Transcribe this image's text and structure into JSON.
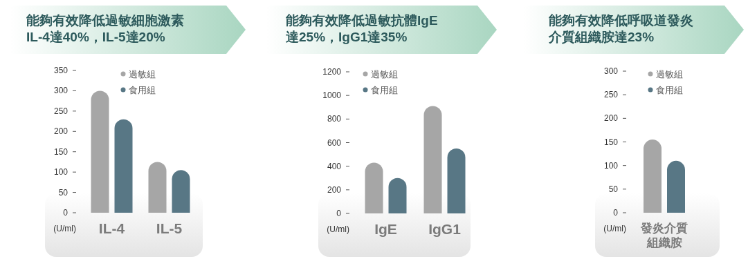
{
  "chart_data": [
    {
      "type": "bar",
      "title": "能夠有效降低過敏細胞激素IL-4達40%，IL-5達20%",
      "annotations": [
        "(U/ml)"
      ],
      "categories": [
        "IL-4",
        "IL-5"
      ],
      "legend": "top",
      "series": [
        {
          "name": "過敏組",
          "color": "#a6a6a6",
          "values": [
            300,
            125
          ]
        },
        {
          "name": "食用組",
          "color": "#587785",
          "values": [
            230,
            105
          ]
        }
      ],
      "ylim": [
        0,
        350
      ],
      "yticks": [
        0,
        50,
        100,
        150,
        200,
        250,
        300,
        350
      ]
    },
    {
      "type": "bar",
      "title": "能夠有效降低過敏抗體IgE達25%，IgG1達35%",
      "annotations": [
        "(U/ml)"
      ],
      "categories": [
        "IgE",
        "IgG1"
      ],
      "legend": "top",
      "series": [
        {
          "name": "過敏組",
          "color": "#a6a6a6",
          "values": [
            430,
            910
          ]
        },
        {
          "name": "食用組",
          "color": "#587785",
          "values": [
            300,
            550
          ]
        }
      ],
      "ylim": [
        0,
        1200
      ],
      "yticks": [
        0,
        200,
        400,
        600,
        800,
        1000,
        1200
      ]
    },
    {
      "type": "bar",
      "title": "能夠有效降低呼吸道發炎介質組織胺達23%",
      "annotations": [
        "(U/ml)"
      ],
      "categories": [
        "發炎介質組織胺"
      ],
      "legend": "top",
      "series": [
        {
          "name": "過敏組",
          "color": "#a6a6a6",
          "values": [
            155
          ]
        },
        {
          "name": "食用組",
          "color": "#587785",
          "values": [
            110
          ]
        }
      ],
      "ylim": [
        0,
        300
      ],
      "yticks": [
        0,
        50,
        100,
        150,
        200,
        250,
        300
      ]
    }
  ]
}
